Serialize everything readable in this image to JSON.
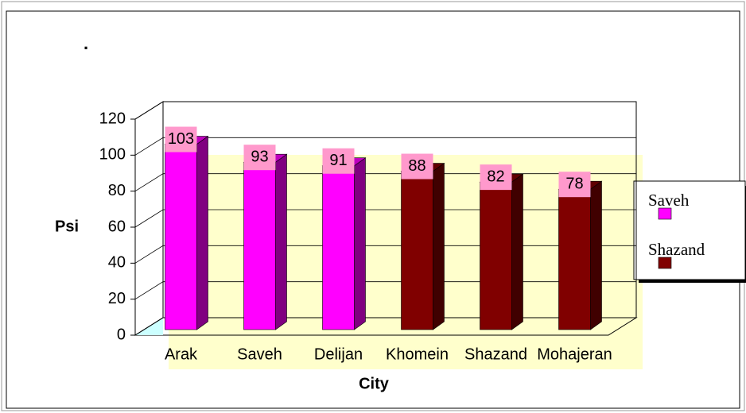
{
  "chart_data": {
    "type": "bar3d",
    "title": ".",
    "categories": [
      "Arak",
      "Saveh",
      "Delijan",
      "Khomein",
      "Shazand",
      "Mohajeran"
    ],
    "series": [
      {
        "name": "Saveh",
        "color": "#ff00ff",
        "values": [
          103,
          93,
          91,
          null,
          null,
          null
        ]
      },
      {
        "name": "Shazand",
        "color": "#800000",
        "values": [
          null,
          null,
          null,
          88,
          82,
          78
        ]
      }
    ],
    "ylim": [
      0,
      120
    ],
    "yticks": [
      0,
      20,
      40,
      60,
      80,
      100,
      120
    ],
    "grid": true,
    "y_label": "Psi",
    "x_label": "City",
    "legend": "right"
  }
}
